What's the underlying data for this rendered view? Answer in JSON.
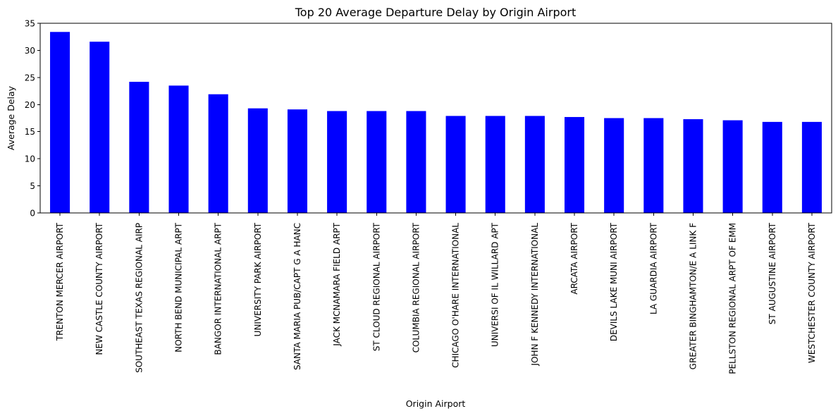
{
  "chart_data": {
    "type": "bar",
    "title": "Top 20 Average Departure Delay by Origin Airport",
    "xlabel": "Origin Airport",
    "ylabel": "Average Delay",
    "ylim": [
      0,
      35
    ],
    "yticks": [
      0,
      5,
      10,
      15,
      20,
      25,
      30,
      35
    ],
    "bar_color": "#0000ff",
    "grid": false,
    "legend": "none",
    "categories": [
      "TRENTON MERCER AIRPORT",
      "NEW CASTLE COUNTY AIRPORT",
      "SOUTHEAST TEXAS REGIONAL AIRP",
      "NORTH BEND MUNICIPAL ARPT",
      "BANGOR INTERNATIONAL ARPT",
      "UNIVERSITY PARK AIRPORT",
      "SANTA MARIA PUB/CAPT G A HANC",
      "JACK MCNAMARA FIELD ARPT",
      "ST CLOUD REGIONAL AIRPORT",
      "COLUMBIA REGIONAL AIRPORT",
      "CHICAGO O'HARE INTERNATIONAL",
      "UNIVERSI OF IL WILLARD APT",
      "JOHN F KENNEDY INTERNATIONAL",
      "ARCATA AIRPORT",
      "DEVILS LAKE MUNI AIRPORT",
      "LA GUARDIA AIRPORT",
      "GREATER BINGHAMTON/E A LINK F",
      "PELLSTON REGIONAL ARPT OF EMM",
      "ST AUGUSTINE AIRPORT",
      "WESTCHESTER COUNTY AIRPORT"
    ],
    "values": [
      33.4,
      31.6,
      24.2,
      23.5,
      21.9,
      19.3,
      19.1,
      18.8,
      18.8,
      18.8,
      17.9,
      17.9,
      17.9,
      17.7,
      17.5,
      17.5,
      17.3,
      17.1,
      16.8,
      16.8
    ]
  }
}
